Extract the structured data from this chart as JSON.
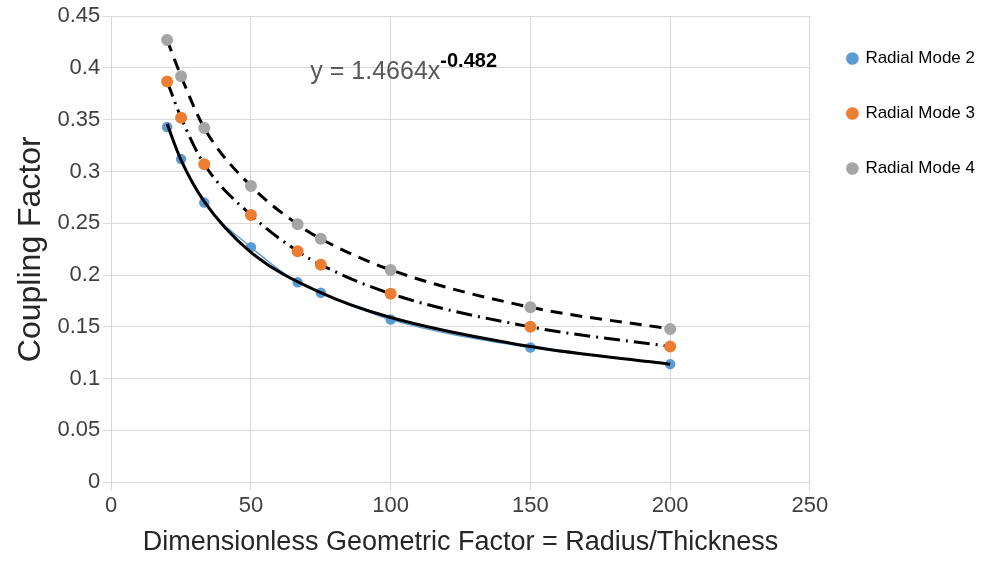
{
  "chart_data": {
    "type": "line",
    "xlabel": "Dimensionless Geometric Factor = Radius/Thickness",
    "ylabel": "Coupling Factor",
    "x": [
      20,
      25,
      33.3,
      50,
      66.7,
      75,
      100,
      150,
      200
    ],
    "series": [
      {
        "name": "Radial Mode 2",
        "color": "#5b9bd5",
        "values": [
          0.343,
          0.312,
          0.27,
          0.227,
          0.193,
          0.183,
          0.157,
          0.13,
          0.114
        ]
      },
      {
        "name": "Radial Mode 3",
        "color": "#ed7d31",
        "line_style": "dashdot",
        "values": [
          0.387,
          0.352,
          0.307,
          0.258,
          0.223,
          0.21,
          0.182,
          0.15,
          0.131
        ]
      },
      {
        "name": "Radial Mode 4",
        "color": "#a5a5a5",
        "line_style": "dashed",
        "values": [
          0.427,
          0.392,
          0.342,
          0.286,
          0.249,
          0.235,
          0.205,
          0.169,
          0.148
        ]
      },
      {
        "type": "line",
        "marker": "none",
        "color": "#000000",
        "line_style": "solid",
        "x": [
          20,
          25,
          33.3,
          50,
          75,
          100,
          150,
          200
        ],
        "values": [
          0.346,
          0.311,
          0.271,
          0.222,
          0.183,
          0.159,
          0.131,
          0.114
        ]
      }
    ],
    "annotations": [
      "y = 1.4664x$^{-0.482}$"
    ],
    "xlim": [
      0,
      250
    ],
    "xticks": [
      0,
      50,
      100,
      150,
      200,
      250
    ],
    "ylim": [
      0,
      0.45
    ],
    "yticks": [
      0,
      0.05,
      0.1,
      0.15,
      0.2,
      0.25,
      0.3,
      0.35,
      0.4,
      0.45
    ],
    "grid": true,
    "legend": "right",
    "marker": "circle"
  }
}
